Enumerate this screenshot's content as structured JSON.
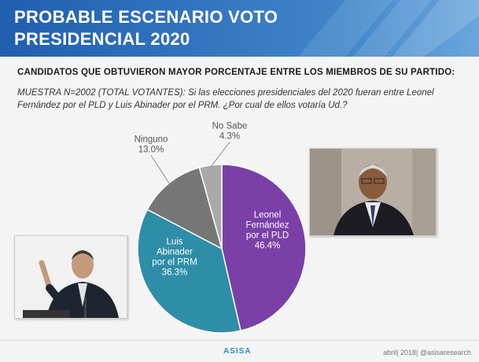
{
  "header": {
    "title": "PROBABLE ESCENARIO  VOTO\nPRESIDENCIAL 2020"
  },
  "subtitle": "CANDIDATOS QUE OBTUVIERON MAYOR PORCENTAJE ENTRE LOS MIEMBROS DE SU PARTIDO:",
  "question": "MUESTRA N=2002 (TOTAL VOTANTES): Si las elecciones presidenciales del 2020 fueran entre Leonel Fernández por el PLD  y Luis Abinader  por el PRM.  ¿Por cual de ellos votaría Ud.?",
  "chart_data": {
    "type": "pie",
    "slices": [
      {
        "label": [
          "Leonel",
          "Fernández",
          "por el PLD"
        ],
        "value": 46.4,
        "value_text": "46.4%",
        "color": "#7b3fa8"
      },
      {
        "label": [
          "Luis",
          "Abinader",
          "por el PRM"
        ],
        "value": 36.3,
        "value_text": "36.3%",
        "color": "#2e8da7"
      },
      {
        "label": [
          "Ninguno"
        ],
        "value": 13.0,
        "value_text": "13.0%",
        "color": "#767676"
      },
      {
        "label": [
          "No Sabe"
        ],
        "value": 4.3,
        "value_text": "4.3%",
        "color": "#a9a9a9"
      }
    ]
  },
  "footer": {
    "logo": "ASISA",
    "right": "abril| 2018| @asisaresearch"
  },
  "colors": {
    "banner": "#2d6fba",
    "ld_purple": "#7b3fa8",
    "prm_teal": "#2e8da7"
  }
}
